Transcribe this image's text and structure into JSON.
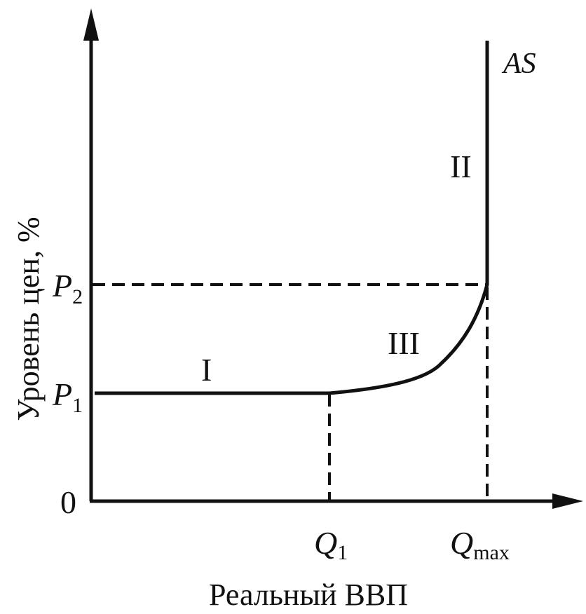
{
  "chart_data": {
    "type": "line",
    "curve_label": "AS",
    "axes": {
      "xlabel": "Реальный ВВП",
      "ylabel": "Уровень цен, %",
      "origin_label": "0"
    },
    "x_ticks": [
      {
        "main": "Q",
        "sub": "1"
      },
      {
        "main": "Q",
        "sub": "max"
      }
    ],
    "y_ticks": [
      {
        "main": "P",
        "sub": "1"
      },
      {
        "main": "P",
        "sub": "2"
      }
    ],
    "segments": [
      {
        "label": "I"
      },
      {
        "label": "III"
      },
      {
        "label": "II"
      }
    ]
  }
}
